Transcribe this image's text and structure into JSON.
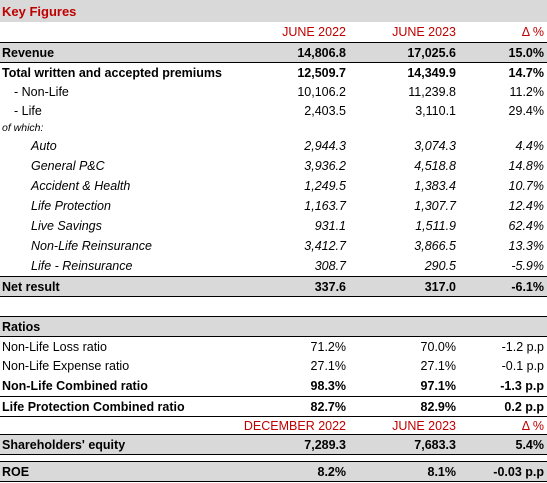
{
  "key_figures": {
    "title": "Key Figures",
    "col_a": "JUNE 2022",
    "col_b": "JUNE 2023",
    "col_c": "Δ %",
    "revenue": {
      "label": "Revenue",
      "a": "14,806.8",
      "b": "17,025.6",
      "c": "15.0%"
    },
    "premiums": {
      "label": "Total written and accepted premiums",
      "a": "12,509.7",
      "b": "14,349.9",
      "c": "14.7%"
    },
    "non_life": {
      "label": "- Non-Life",
      "a": "10,106.2",
      "b": "11,239.8",
      "c": "11.2%"
    },
    "life": {
      "label": "- Life",
      "a": "2,403.5",
      "b": "3,110.1",
      "c": "29.4%"
    },
    "of_which": "of which:",
    "auto": {
      "label": "Auto",
      "a": "2,944.3",
      "b": "3,074.3",
      "c": "4.4%"
    },
    "general": {
      "label": "General P&C",
      "a": "3,936.2",
      "b": "4,518.8",
      "c": "14.8%"
    },
    "accident": {
      "label": "Accident & Health",
      "a": "1,249.5",
      "b": "1,383.4",
      "c": "10.7%"
    },
    "life_protection": {
      "label": "Life Protection",
      "a": "1,163.7",
      "b": "1,307.7",
      "c": "12.4%"
    },
    "live_savings": {
      "label": "Live Savings",
      "a": "931.1",
      "b": "1,511.9",
      "c": "62.4%"
    },
    "nl_reins": {
      "label": "Non-Life Reinsurance",
      "a": "3,412.7",
      "b": "3,866.5",
      "c": "13.3%"
    },
    "life_reins": {
      "label": "Life - Reinsurance",
      "a": "308.7",
      "b": "290.5",
      "c": "-5.9%"
    },
    "net_result": {
      "label": "Net result",
      "a": "337.6",
      "b": "317.0",
      "c": "-6.1%"
    }
  },
  "ratios": {
    "title": "Ratios",
    "nl_loss": {
      "label": "Non-Life Loss ratio",
      "a": "71.2%",
      "b": "70.0%",
      "c": "-1.2 p.p"
    },
    "nl_expense": {
      "label": "Non-Life Expense ratio",
      "a": "27.1%",
      "b": "27.1%",
      "c": "-0.1 p.p"
    },
    "nl_combined": {
      "label": "Non-Life Combined ratio",
      "a": "98.3%",
      "b": "97.1%",
      "c": "-1.3 p.p"
    },
    "lp_combined": {
      "label": "Life Protection Combined ratio",
      "a": "82.7%",
      "b": "82.9%",
      "c": "0.2 p.p"
    },
    "col_a2": "DECEMBER 2022",
    "col_b2": "JUNE 2023",
    "col_c2": "Δ %",
    "equity": {
      "label": "Shareholders' equity",
      "a": "7,289.3",
      "b": "7,683.3",
      "c": "5.4%"
    },
    "roe": {
      "label": "ROE",
      "a": "8.2%",
      "b": "8.1%",
      "c": "-0.03 p.p"
    }
  }
}
